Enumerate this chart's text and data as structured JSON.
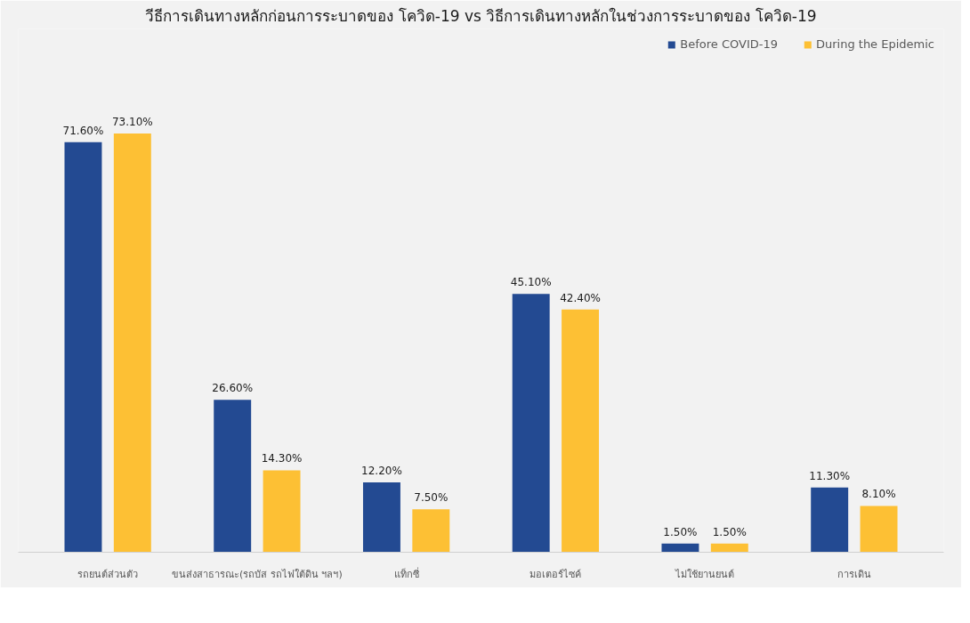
{
  "chart_data": {
    "type": "bar",
    "title": "วีธีการเดินทางหลักก่อนการระบาดของ โควิด-19 vs วิธีการเดินทางหลักในช่วงการระบาดของ โควิด-19",
    "categories": [
      "รถยนต์ส่วนตัว",
      "ขนส่งสาธารณะ(รถบัส รถไฟใต้ดิน ฯลฯ)",
      "แท็กซี่",
      "มอเตอร์ไซค์",
      "ไม่ใช้ยานยนต์",
      "การเดิน"
    ],
    "series": [
      {
        "name": "Before COVID-19",
        "color": "#234a92",
        "values": [
          71.6,
          26.6,
          12.2,
          45.1,
          1.5,
          11.3
        ],
        "value_labels": [
          "71.60%",
          "26.60%",
          "12.20%",
          "45.10%",
          "1.50%",
          "11.30%"
        ]
      },
      {
        "name": "During the Epidemic",
        "color": "#fdc034",
        "values": [
          73.1,
          14.3,
          7.5,
          42.4,
          1.5,
          8.1
        ],
        "value_labels": [
          "73.10%",
          "14.30%",
          "7.50%",
          "42.40%",
          "1.50%",
          "8.10%"
        ]
      }
    ],
    "legend": "top right",
    "grid": false,
    "tick_labels": "x"
  }
}
